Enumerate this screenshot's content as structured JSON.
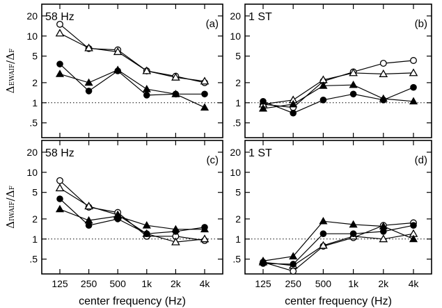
{
  "chart_data": [
    {
      "panel": "(a)",
      "type": "line",
      "title": "58 Hz",
      "ylabel": "ΔEWAIF/ΔF",
      "ylabel_main": "Δ",
      "ylabel_num": "EWAIF",
      "ylabel_den": "F",
      "xlabel": "",
      "x": [
        "125",
        "250",
        "500",
        "1k",
        "2k",
        "4k"
      ],
      "ylim": [
        0.3,
        30
      ],
      "yscale": "log",
      "reference_line": 1,
      "series": [
        {
          "marker": "open-circle",
          "values": [
            15,
            6.5,
            6.2,
            3.0,
            2.5,
            2.0
          ]
        },
        {
          "marker": "open-triangle",
          "values": [
            11,
            6.6,
            5.8,
            3.0,
            2.4,
            2.1
          ]
        },
        {
          "marker": "filled-circle",
          "values": [
            3.8,
            1.5,
            3.0,
            1.3,
            1.35,
            1.35
          ]
        },
        {
          "marker": "filled-triangle",
          "values": [
            2.7,
            2.0,
            3.1,
            1.6,
            1.35,
            0.85
          ]
        }
      ]
    },
    {
      "panel": "(b)",
      "type": "line",
      "title": "1 ST",
      "ylabel": "",
      "xlabel": "",
      "x": [
        "125",
        "250",
        "500",
        "1k",
        "2k",
        "4k"
      ],
      "ylim": [
        0.3,
        30
      ],
      "yscale": "log",
      "reference_line": 1,
      "series": [
        {
          "marker": "open-circle",
          "values": [
            0.95,
            0.85,
            2.1,
            2.9,
            3.9,
            4.3
          ]
        },
        {
          "marker": "open-triangle",
          "values": [
            0.95,
            1.1,
            2.2,
            2.8,
            2.7,
            2.8
          ]
        },
        {
          "marker": "filled-circle",
          "values": [
            1.05,
            0.7,
            1.1,
            1.35,
            1.1,
            1.7
          ]
        },
        {
          "marker": "filled-triangle",
          "values": [
            0.82,
            0.95,
            1.8,
            1.85,
            1.15,
            1.05
          ]
        }
      ]
    },
    {
      "panel": "(c)",
      "type": "line",
      "title": "58 Hz",
      "ylabel": "ΔIWAIF/ΔF",
      "ylabel_main": "Δ",
      "ylabel_num": "IWAIF",
      "ylabel_den": "F",
      "xlabel": "center frequency (Hz)",
      "x": [
        "125",
        "250",
        "500",
        "1k",
        "2k",
        "4k"
      ],
      "ylim": [
        0.3,
        30
      ],
      "yscale": "log",
      "reference_line": 1,
      "series": [
        {
          "marker": "open-circle",
          "values": [
            7.5,
            3.0,
            2.5,
            1.1,
            1.1,
            0.95
          ]
        },
        {
          "marker": "open-triangle",
          "values": [
            5.8,
            3.1,
            2.3,
            1.2,
            0.9,
            1.0
          ]
        },
        {
          "marker": "filled-circle",
          "values": [
            4.0,
            1.6,
            2.0,
            1.2,
            1.3,
            1.5
          ]
        },
        {
          "marker": "filled-triangle",
          "values": [
            2.8,
            1.9,
            2.2,
            1.6,
            1.4,
            1.4
          ]
        }
      ]
    },
    {
      "panel": "(d)",
      "type": "line",
      "title": "1 ST",
      "ylabel": "",
      "xlabel": "center frequency (Hz)",
      "x": [
        "125",
        "250",
        "500",
        "1k",
        "2k",
        "4k"
      ],
      "ylim": [
        0.3,
        30
      ],
      "yscale": "log",
      "reference_line": 1,
      "series": [
        {
          "marker": "open-circle",
          "values": [
            0.45,
            0.33,
            0.78,
            1.05,
            1.6,
            1.75
          ]
        },
        {
          "marker": "open-triangle",
          "values": [
            0.45,
            0.4,
            0.8,
            1.1,
            1.0,
            1.2
          ]
        },
        {
          "marker": "filled-circle",
          "values": [
            0.43,
            0.42,
            1.2,
            1.2,
            1.3,
            1.6
          ]
        },
        {
          "marker": "filled-triangle",
          "values": [
            0.47,
            0.55,
            1.85,
            1.65,
            1.55,
            1.0
          ]
        }
      ]
    }
  ],
  "axes": {
    "ytick_labels": [
      "20",
      "10",
      "5",
      "2",
      "1",
      ".5"
    ],
    "ytick_values": [
      20,
      10,
      5,
      2,
      1,
      0.5
    ],
    "xtick_labels": [
      "125",
      "250",
      "500",
      "1k",
      "2k",
      "4k"
    ]
  }
}
